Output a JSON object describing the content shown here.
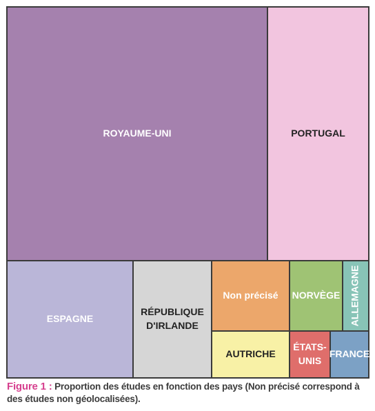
{
  "chart_data": {
    "type": "treemap",
    "caption_prefix": "Figure 1 :",
    "caption_text": "Proportion des études en fonction des pays (Non précisé correspond à des études non géolocalisées).",
    "items": [
      {
        "id": "royaume-uni",
        "label_lines": [
          "ROYAUME-UNI"
        ],
        "color": "#a581ae",
        "text_color": "#ffffff"
      },
      {
        "id": "portugal",
        "label_lines": [
          "PORTUGAL"
        ],
        "color": "#f2c5df",
        "text_color": "#222222"
      },
      {
        "id": "espagne",
        "label_lines": [
          "ESPAGNE"
        ],
        "color": "#bab6d8",
        "text_color": "#ffffff"
      },
      {
        "id": "republique-irlande",
        "label_lines": [
          "RÉPUBLIQUE",
          "D'IRLANDE"
        ],
        "color": "#d6d6d6",
        "text_color": "#222222"
      },
      {
        "id": "non-precise",
        "label_lines": [
          "Non précisé"
        ],
        "color": "#eca76b",
        "text_color": "#ffffff"
      },
      {
        "id": "norvege",
        "label_lines": [
          "NORVÈGE"
        ],
        "color": "#9fc374",
        "text_color": "#ffffff"
      },
      {
        "id": "allemagne",
        "label_lines": [
          "ALLEMAGNE"
        ],
        "color": "#88c4b7",
        "text_color": "#ffffff",
        "rotate": true
      },
      {
        "id": "autriche",
        "label_lines": [
          "AUTRICHE"
        ],
        "color": "#f8f1a6",
        "text_color": "#222222"
      },
      {
        "id": "etats-unis",
        "label_lines": [
          "ÉTATS-",
          "UNIS"
        ],
        "color": "#df6e6b",
        "text_color": "#ffffff"
      },
      {
        "id": "france",
        "label_lines": [
          "FRANCE"
        ],
        "color": "#7ca1c5",
        "text_color": "#ffffff"
      }
    ]
  }
}
